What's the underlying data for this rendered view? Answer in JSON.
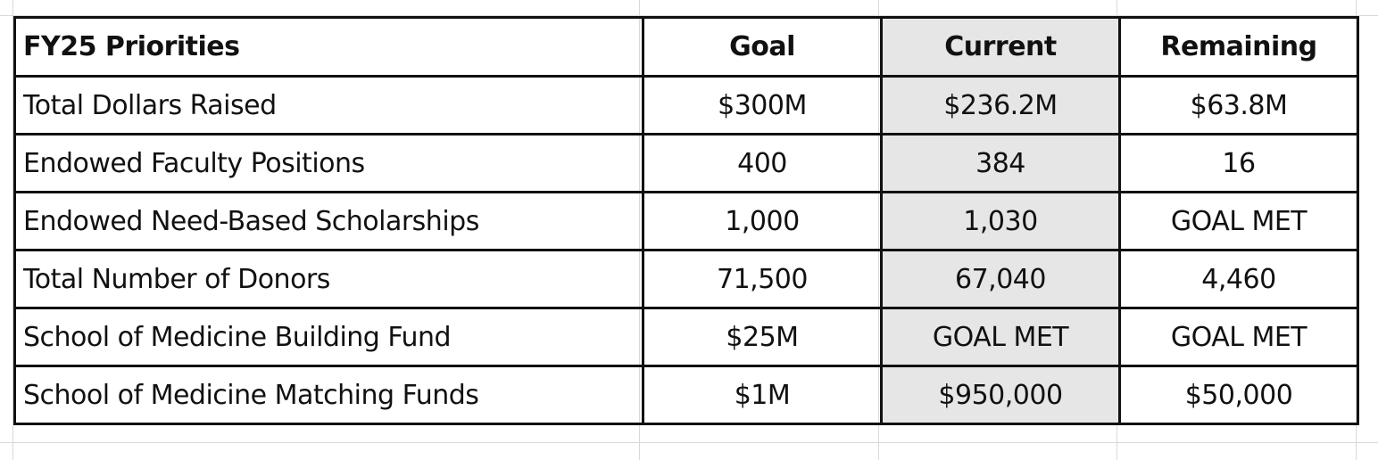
{
  "table": {
    "headers": [
      "FY25 Priorities",
      "Goal",
      "Current",
      "Remaining"
    ],
    "rows": [
      [
        "Total Dollars Raised",
        "$300M",
        "$236.2M",
        "$63.8M"
      ],
      [
        "Endowed Faculty Positions",
        "400",
        "384",
        "16"
      ],
      [
        "Endowed Need-Based Scholarships",
        "1,000",
        "1,030",
        "GOAL MET"
      ],
      [
        "Total Number of Donors",
        "71,500",
        "67,040",
        "4,460"
      ],
      [
        "School of Medicine Building Fund",
        "$25M",
        "GOAL MET",
        "GOAL MET"
      ],
      [
        "School of Medicine Matching Funds",
        "$1M",
        "$950,000",
        "$50,000"
      ]
    ]
  },
  "colors": {
    "border": "#111111",
    "current_column_fill": "#e6e6e6",
    "gridline": "#d9d9d9"
  }
}
